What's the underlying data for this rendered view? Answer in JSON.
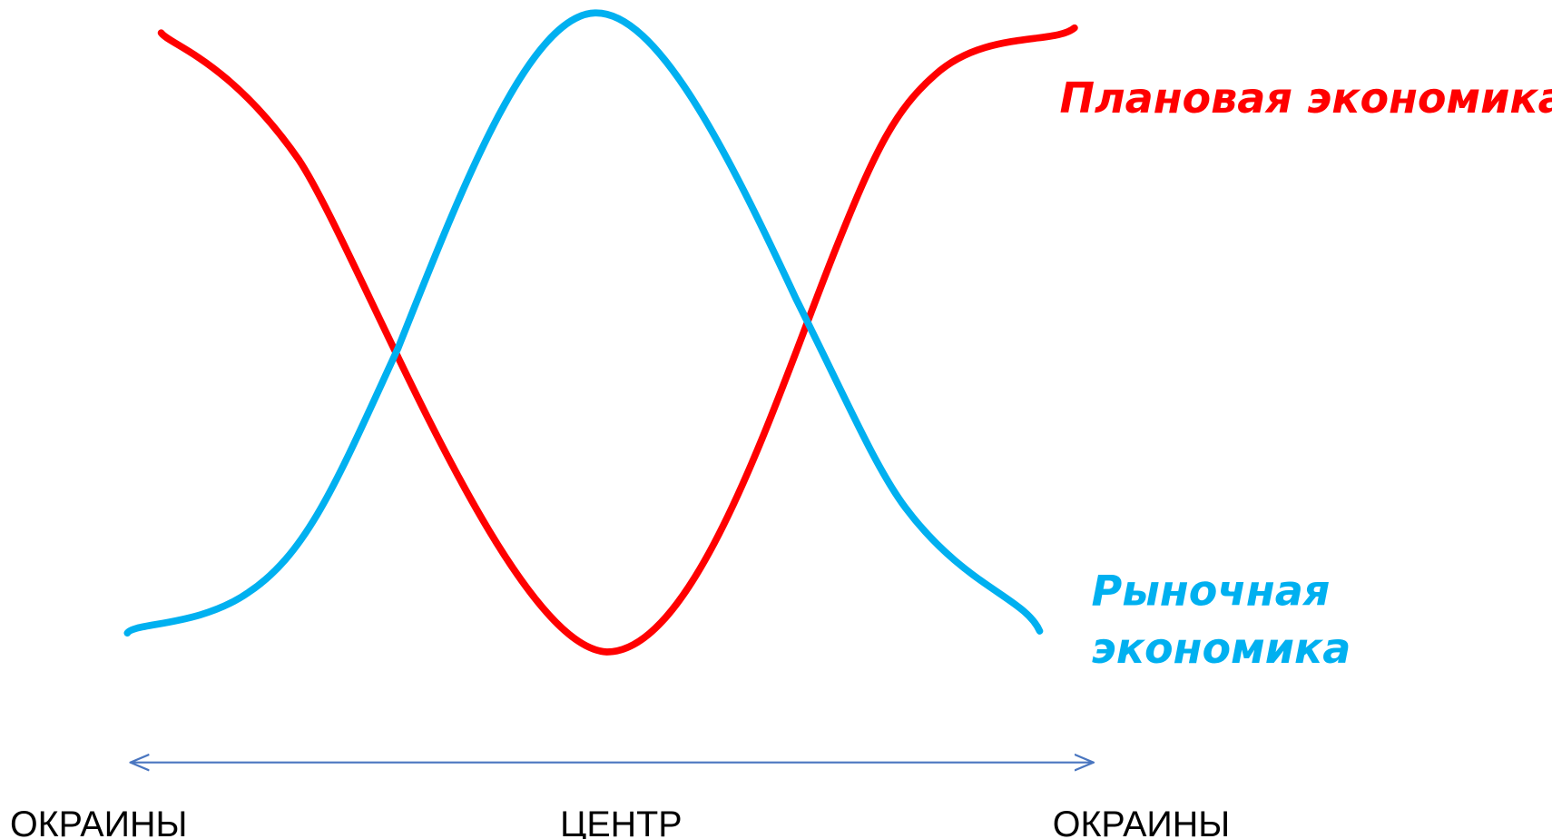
{
  "labels": {
    "planned": "Плановая экономика",
    "market": [
      "Рыночная",
      "экономика"
    ]
  },
  "axis": {
    "left": "ОКРАИНЫ",
    "center": "ЦЕНТР",
    "right": "ОКРАИНЫ"
  }
}
